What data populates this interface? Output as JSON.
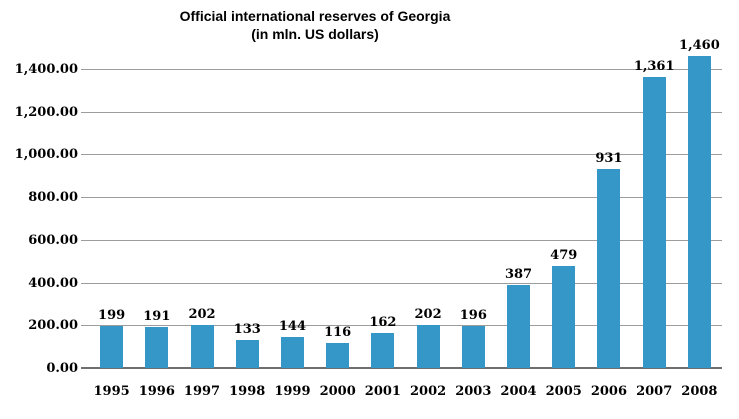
{
  "chart_data": {
    "type": "bar",
    "title": "Official international reserves of Georgia",
    "subtitle": "(in mln. US dollars)",
    "categories": [
      "1995",
      "1996",
      "1997",
      "1998",
      "1999",
      "2000",
      "2001",
      "2002",
      "2003",
      "2004",
      "2005",
      "2006",
      "2007",
      "2008"
    ],
    "values": [
      199,
      191,
      202,
      133,
      144,
      116,
      162,
      202,
      196,
      387,
      479,
      931,
      1361,
      1460
    ],
    "data_labels": [
      "199",
      "191",
      "202",
      "133",
      "144",
      "116",
      "162",
      "202",
      "196",
      "387",
      "479",
      "931",
      "1,361",
      "1,460"
    ],
    "y_ticks": [
      {
        "value": 0,
        "label": "0.00"
      },
      {
        "value": 200,
        "label": "200.00"
      },
      {
        "value": 400,
        "label": "400.00"
      },
      {
        "value": 600,
        "label": "600.00"
      },
      {
        "value": 800,
        "label": "800.00"
      },
      {
        "value": 1000,
        "label": "1,000.00"
      },
      {
        "value": 1200,
        "label": "1,200.00"
      },
      {
        "value": 1400,
        "label": "1,400.00"
      }
    ],
    "ylim": [
      0,
      1470
    ],
    "xlabel": "",
    "ylabel": "",
    "grid": true,
    "legend": "none",
    "colors": {
      "bar": "#3596C8",
      "gridline": "#9c9c9c",
      "axis_line": "#6e6e6e",
      "text": "#000000",
      "background": "#ffffff"
    }
  }
}
